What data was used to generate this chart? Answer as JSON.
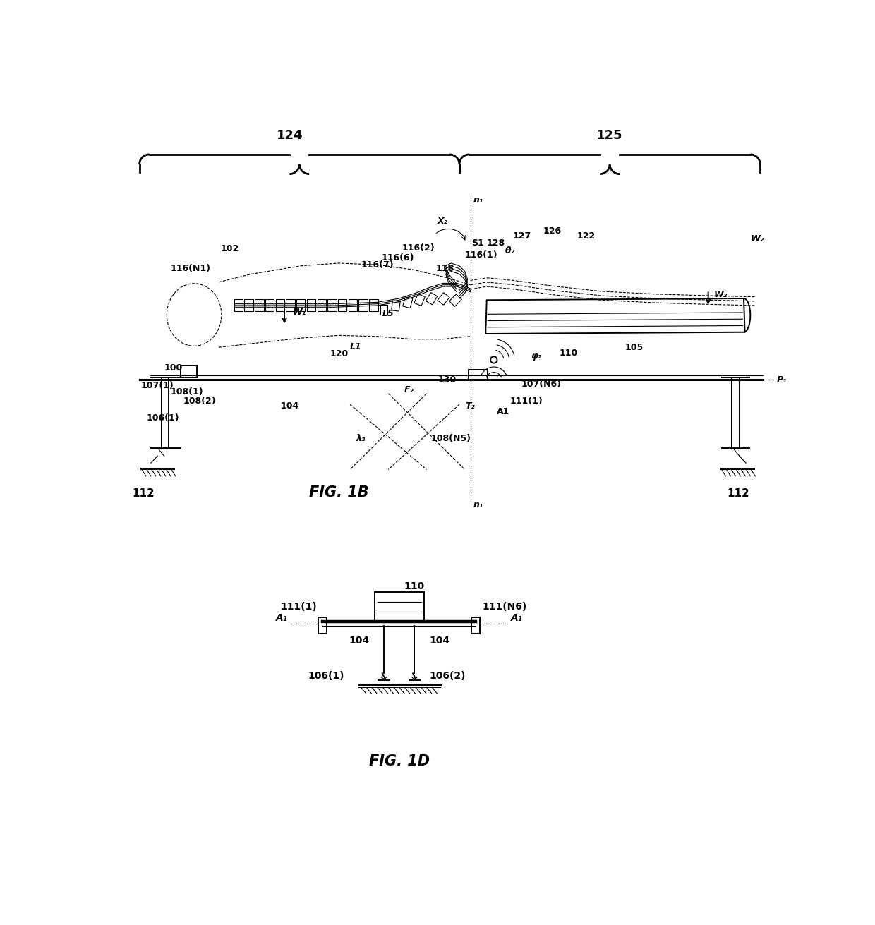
{
  "bg_color": "#ffffff",
  "line_color": "#000000",
  "fig_width": 12.4,
  "fig_height": 13.11,
  "fig1b_title": "FIG. 1B",
  "fig1d_title": "FIG. 1D",
  "label_124": "124",
  "label_125": "125"
}
